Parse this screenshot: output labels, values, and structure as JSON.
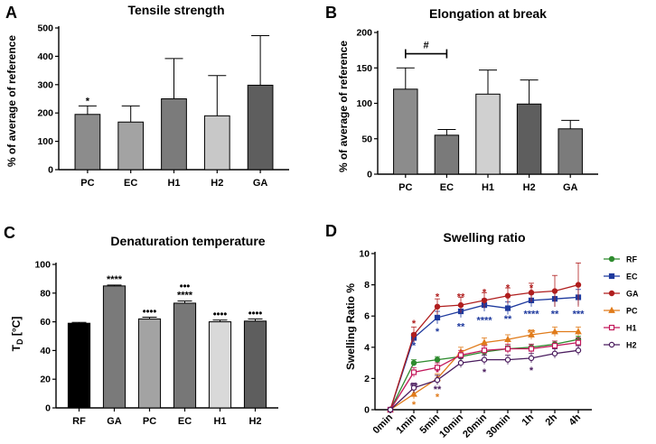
{
  "chart_data": [
    {
      "panel": "A",
      "type": "bar",
      "title": "Tensile strength",
      "ylabel": "% of average of reference",
      "categories": [
        "PC",
        "EC",
        "H1",
        "H2",
        "GA"
      ],
      "values": [
        195,
        168,
        250,
        190,
        298
      ],
      "errors": [
        30,
        57,
        142,
        142,
        175
      ],
      "colors": [
        "#8c8c8c",
        "#a3a3a3",
        "#7b7b7b",
        "#c8c8c8",
        "#5e5e5e"
      ],
      "ylim": [
        0,
        500
      ],
      "yticks": [
        0,
        100,
        200,
        300,
        400,
        500
      ],
      "annotations": [
        {
          "category": "PC",
          "text": "*"
        }
      ]
    },
    {
      "panel": "B",
      "type": "bar",
      "title": "Elongation at break",
      "ylabel": "% of average of reference",
      "categories": [
        "PC",
        "EC",
        "H1",
        "H2",
        "GA"
      ],
      "values": [
        120,
        55,
        113,
        99,
        64
      ],
      "errors": [
        30,
        8,
        34,
        34,
        12
      ],
      "colors": [
        "#8c8c8c",
        "#7a7a7a",
        "#d0d0d0",
        "#5e5e5e",
        "#7b7b7b"
      ],
      "ylim": [
        0,
        200
      ],
      "yticks": [
        0,
        50,
        100,
        150,
        200
      ],
      "bracket": {
        "from": "PC",
        "to": "EC",
        "text": "#"
      }
    },
    {
      "panel": "C",
      "type": "bar",
      "title": "Denaturation temperature",
      "ylabel": "T",
      "ylabel_sub": "D",
      "ylabel_unit": " [°C]",
      "categories": [
        "RF",
        "GA",
        "PC",
        "EC",
        "H1",
        "H2"
      ],
      "values": [
        59,
        85,
        62,
        73,
        60,
        60.5
      ],
      "errors": [
        0.6,
        0.6,
        1.2,
        1.5,
        1.2,
        1.5
      ],
      "colors": [
        "#000000",
        "#7a7a7a",
        "#a3a3a3",
        "#777777",
        "#d9d9d9",
        "#5e5e5e"
      ],
      "ylim": [
        0,
        100
      ],
      "yticks": [
        0,
        20,
        40,
        60,
        80,
        100
      ],
      "annotations": [
        {
          "category": "GA",
          "lines": [
            "****"
          ]
        },
        {
          "category": "PC",
          "lines": [
            "••••"
          ]
        },
        {
          "category": "EC",
          "lines": [
            "•••",
            "****"
          ]
        },
        {
          "category": "H1",
          "lines": [
            "••••"
          ]
        },
        {
          "category": "H2",
          "lines": [
            "••••"
          ]
        }
      ]
    },
    {
      "panel": "D",
      "type": "line",
      "title": "Swelling ratio",
      "ylabel": "Swelling Ratio %",
      "x": [
        "0min",
        "1min",
        "5min",
        "10min",
        "20min",
        "30min",
        "1h",
        "2h",
        "4h"
      ],
      "ylim": [
        0,
        10
      ],
      "yticks": [
        0,
        2,
        4,
        6,
        8,
        10
      ],
      "series": [
        {
          "name": "RF",
          "color": "#2e8b2e",
          "marker": "circle",
          "values": [
            0,
            3.0,
            3.2,
            3.4,
            3.7,
            3.9,
            4.0,
            4.2,
            4.5
          ],
          "errors": [
            0,
            0.2,
            0.2,
            0.2,
            0.2,
            0.2,
            0.2,
            0.2,
            0.2
          ]
        },
        {
          "name": "EC",
          "color": "#1f3a9e",
          "marker": "square",
          "values": [
            0,
            4.6,
            5.9,
            6.3,
            6.7,
            6.5,
            7.0,
            7.1,
            7.2
          ],
          "errors": [
            0,
            0.3,
            0.4,
            0.4,
            0.4,
            0.4,
            0.4,
            0.5,
            0.5
          ]
        },
        {
          "name": "GA",
          "color": "#b01e1e",
          "marker": "circle",
          "values": [
            0,
            4.8,
            6.6,
            6.7,
            7.0,
            7.3,
            7.5,
            7.6,
            8.0
          ],
          "errors": [
            0,
            0.5,
            0.5,
            0.5,
            0.5,
            0.5,
            0.6,
            1.0,
            1.4
          ]
        },
        {
          "name": "PC",
          "color": "#e07b1a",
          "marker": "triangle",
          "values": [
            0,
            1.0,
            2.0,
            3.7,
            4.3,
            4.5,
            4.8,
            5.0,
            5.0
          ],
          "errors": [
            0,
            0.3,
            0.3,
            0.3,
            0.3,
            0.3,
            0.3,
            0.3,
            0.3
          ]
        },
        {
          "name": "H1",
          "color": "#c2185b",
          "marker": "square-open",
          "values": [
            0,
            2.4,
            2.7,
            3.5,
            3.8,
            3.9,
            3.9,
            4.1,
            4.3
          ],
          "errors": [
            0,
            0.3,
            0.3,
            0.3,
            0.3,
            0.3,
            0.3,
            0.3,
            0.3
          ]
        },
        {
          "name": "H2",
          "color": "#4a1c5e",
          "marker": "circle-open",
          "values": [
            0,
            1.4,
            1.9,
            3.0,
            3.2,
            3.2,
            3.3,
            3.6,
            3.8
          ],
          "errors": [
            0,
            0.3,
            0.3,
            0.3,
            0.3,
            0.3,
            0.3,
            0.3,
            0.3
          ]
        }
      ],
      "annotations": [
        {
          "x": "1min",
          "y": 5.6,
          "text": "*",
          "color": "#b01e1e"
        },
        {
          "x": "1min",
          "y": 4.2,
          "text": "*",
          "color": "#1f3a9e"
        },
        {
          "x": "1min",
          "y": 1.6,
          "text": "**",
          "color": "#4a1c5e"
        },
        {
          "x": "1min",
          "y": 0.4,
          "text": "*",
          "color": "#e07b1a"
        },
        {
          "x": "5min",
          "y": 7.3,
          "text": "*",
          "color": "#b01e1e"
        },
        {
          "x": "5min",
          "y": 5.1,
          "text": "*",
          "color": "#1f3a9e"
        },
        {
          "x": "5min",
          "y": 2.5,
          "text": "*",
          "color": "#c2185b"
        },
        {
          "x": "5min",
          "y": 1.4,
          "text": "**",
          "color": "#4a1c5e"
        },
        {
          "x": "5min",
          "y": 0.9,
          "text": "*",
          "color": "#e07b1a"
        },
        {
          "x": "10min",
          "y": 7.3,
          "text": "**",
          "color": "#b01e1e"
        },
        {
          "x": "10min",
          "y": 5.4,
          "text": "**",
          "color": "#1f3a9e"
        },
        {
          "x": "20min",
          "y": 7.6,
          "text": "*",
          "color": "#b01e1e"
        },
        {
          "x": "20min",
          "y": 5.8,
          "text": "****",
          "color": "#1f3a9e"
        },
        {
          "x": "20min",
          "y": 2.5,
          "text": "*",
          "color": "#4a1c5e"
        },
        {
          "x": "30min",
          "y": 7.9,
          "text": "*",
          "color": "#b01e1e"
        },
        {
          "x": "30min",
          "y": 5.9,
          "text": "**",
          "color": "#1f3a9e"
        },
        {
          "x": "1h",
          "y": 7.9,
          "text": "*",
          "color": "#b01e1e"
        },
        {
          "x": "1h",
          "y": 6.2,
          "text": "****",
          "color": "#1f3a9e"
        },
        {
          "x": "1h",
          "y": 5.0,
          "text": "**",
          "color": "#e07b1a"
        },
        {
          "x": "1h",
          "y": 2.6,
          "text": "*",
          "color": "#4a1c5e"
        },
        {
          "x": "2h",
          "y": 6.2,
          "text": "**",
          "color": "#1f3a9e"
        },
        {
          "x": "4h",
          "y": 6.2,
          "text": "***",
          "color": "#1f3a9e"
        }
      ]
    }
  ]
}
